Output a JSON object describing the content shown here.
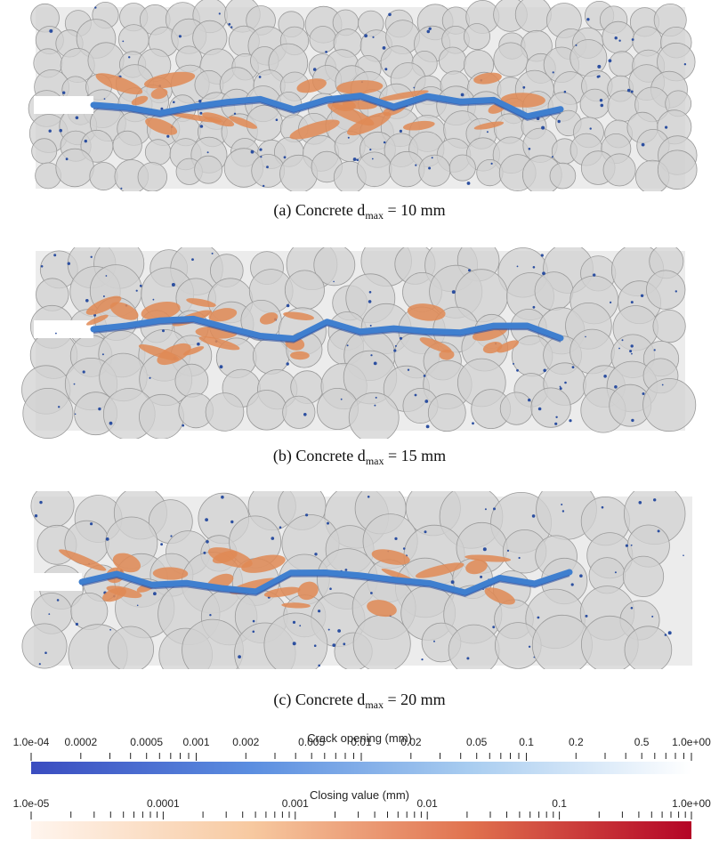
{
  "figure": {
    "panels": [
      {
        "caption_prefix": "(a)  Concrete d",
        "caption_sub": "max",
        "caption_suffix": " = 10 mm"
      },
      {
        "caption_prefix": "(b)  Concrete d",
        "caption_sub": "max",
        "caption_suffix": " = 15 mm"
      },
      {
        "caption_prefix": "(c)  Concrete d",
        "caption_sub": "max",
        "caption_suffix": " = 20 mm"
      }
    ],
    "colors": {
      "aggregate_fill": "#d2d2d2",
      "aggregate_edge": "#9a9a9a",
      "crack_blue": "#3f7fcf",
      "crack_dark_blue": "#2c4fa0",
      "closing_orange": "#e08a55"
    }
  },
  "colorbars": [
    {
      "title": "Crack opening (mm)",
      "labels": [
        "1.0e-04",
        "0.0002",
        "0.0005",
        "0.001",
        "0.002",
        "0.005",
        "0.01",
        "0.02",
        "0.05",
        "0.1",
        "0.2",
        "0.5",
        "1.0e+00"
      ],
      "min": 0.0001,
      "max": 1.0,
      "scale": "log",
      "gradient": [
        "#3a4cc0",
        "#5b8ee0",
        "#a9cdf0",
        "#ffffff"
      ]
    },
    {
      "title": "Closing value (mm)",
      "labels": [
        "1.0e-05",
        "0.0001",
        "0.001",
        "0.01",
        "0.1",
        "1.0e+00"
      ],
      "min": 1e-05,
      "max": 1.0,
      "scale": "log",
      "gradient": [
        "#fff5ee",
        "#f7c9a0",
        "#e0714e",
        "#b40426"
      ]
    }
  ]
}
